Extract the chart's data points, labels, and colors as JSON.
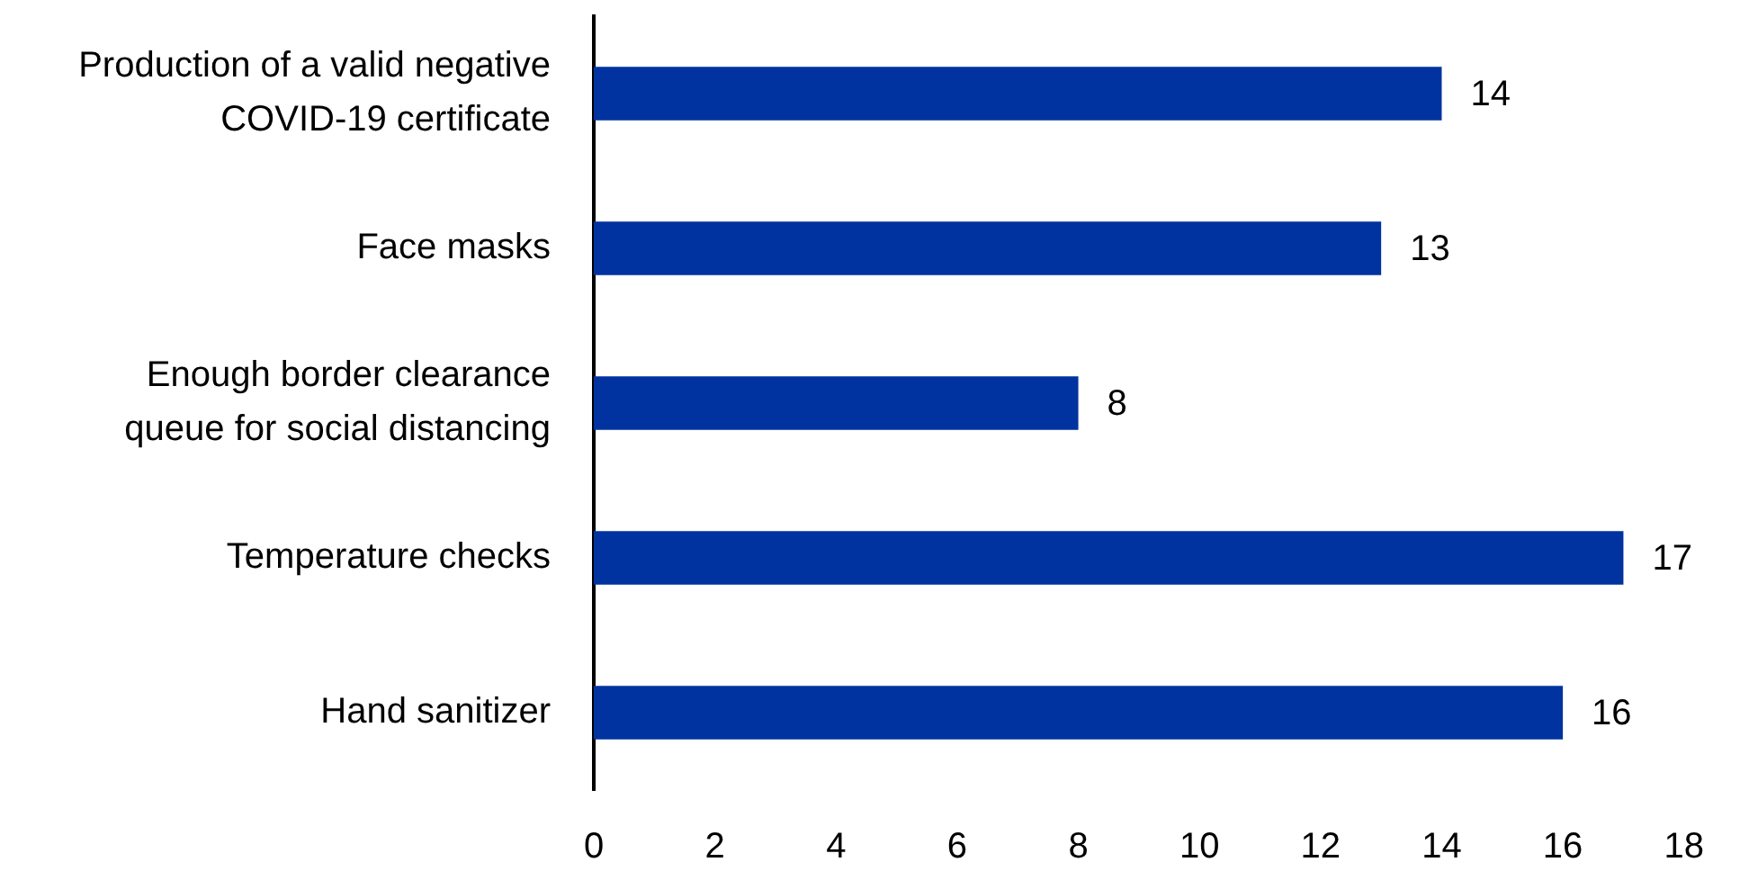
{
  "chart_data": {
    "type": "bar",
    "orientation": "horizontal",
    "categories": [
      "Production of a valid negative COVID-19 certificate",
      "Face masks",
      "Enough border clearance queue for social distancing",
      "Temperature checks",
      "Hand sanitizer"
    ],
    "values": [
      14,
      13,
      8,
      17,
      16
    ],
    "color": "#0033a0",
    "xlim": [
      0,
      18
    ],
    "xticks": [
      0,
      2,
      4,
      6,
      8,
      10,
      12,
      14,
      16,
      18
    ],
    "data_labels": true
  }
}
